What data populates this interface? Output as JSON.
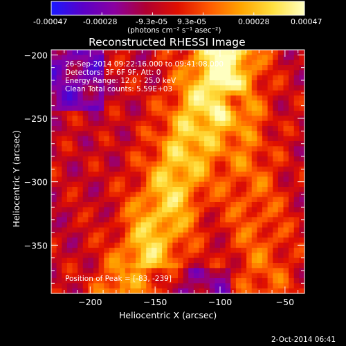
{
  "colorbar": {
    "ticks": [
      "-0.00047",
      "-0.00028",
      "-9.3e-05",
      "9.3e-05",
      "0.00028",
      "0.00047"
    ],
    "unit_label": "(photons cm⁻² s⁻¹ asec⁻²)",
    "colors": [
      "#1a1aff",
      "#5a00c8",
      "#8a00a0",
      "#b00030",
      "#e01000",
      "#ff5a00",
      "#ffa500",
      "#ffe040",
      "#ffffc0"
    ]
  },
  "chart_data": {
    "type": "heatmap",
    "title": "Reconstructed RHESSI Image",
    "xlabel": "Heliocentric X (arcsec)",
    "ylabel": "Heliocentric Y (arcsec)",
    "xlim": [
      -230,
      -35
    ],
    "ylim": [
      -388,
      -196
    ],
    "x_ticks": [
      -200,
      -150,
      -100,
      -50
    ],
    "y_ticks": [
      -200,
      -250,
      -300,
      -350
    ],
    "x_tick_labels": [
      "−200",
      "−150",
      "−100",
      "−50"
    ],
    "y_tick_labels": [
      "−200",
      "−250",
      "−300",
      "−350"
    ],
    "value_range": [
      -0.00047,
      0.00047
    ],
    "peak_position": [
      -83,
      -239
    ]
  },
  "info": {
    "line1": "26-Sep-2014 09:22:16.000 to 09:41:08.000",
    "line2": "Detectors: 3F 6F 9F, Att: 0",
    "line3": "Energy Range: 12.0 - 25.0 keV",
    "line4": "Clean    Total counts: 5.59E+03",
    "peak": "Position of Peak = [-83, -239]"
  },
  "footer": {
    "timestamp": "2-Oct-2014 06:41"
  }
}
